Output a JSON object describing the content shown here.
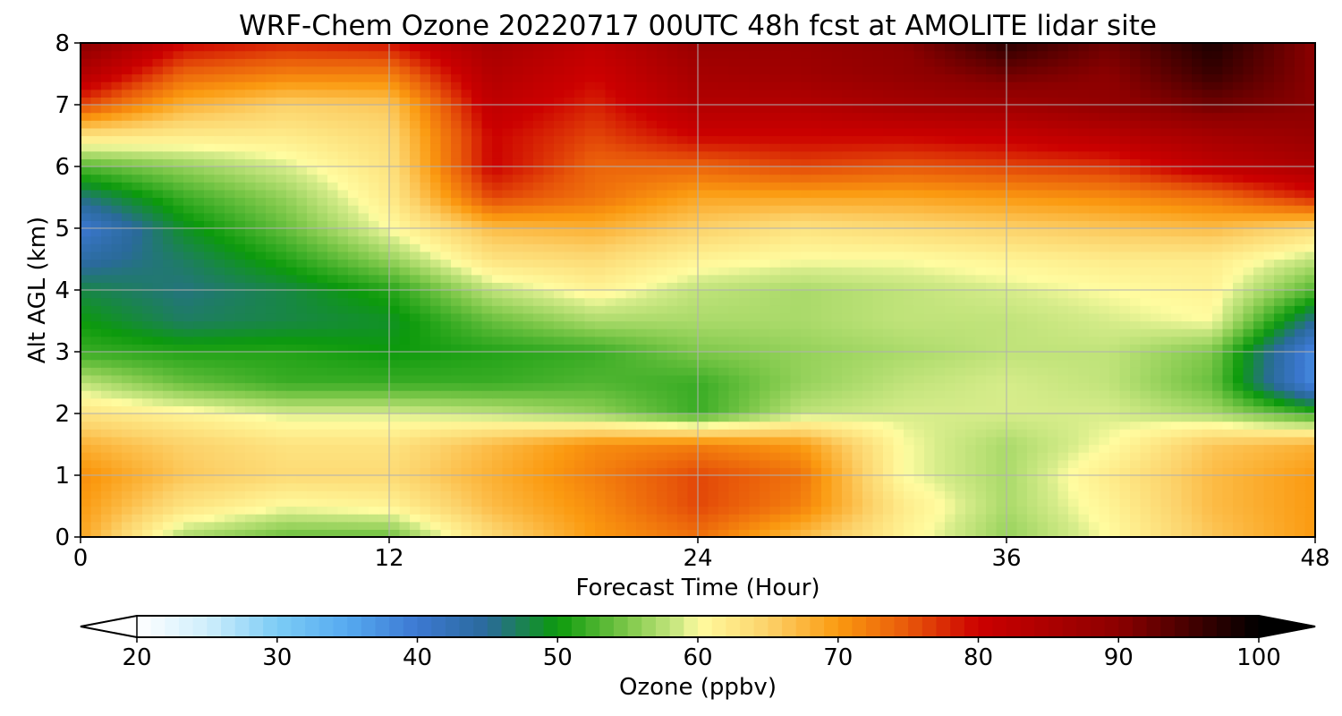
{
  "chart_data": {
    "type": "heatmap",
    "title": "WRF-Chem Ozone  20220717 00UTC 48h fcst at AMOLITE lidar site",
    "xlabel": "Forecast Time (Hour)",
    "ylabel": "Alt AGL (km)",
    "xlim": [
      0,
      48
    ],
    "ylim": [
      0,
      8
    ],
    "xticks": [
      "0",
      "12",
      "24",
      "36",
      "48"
    ],
    "yticks": [
      "0",
      "1",
      "2",
      "3",
      "4",
      "5",
      "6",
      "7",
      "8"
    ],
    "grid": true,
    "colorbar": {
      "label": "Ozone  (ppbv)",
      "min": 20,
      "max": 100,
      "ticks": [
        "20",
        "30",
        "40",
        "50",
        "60",
        "70",
        "80",
        "90",
        "100"
      ],
      "extend": "both",
      "colormap": [
        [
          20,
          "#ffffff"
        ],
        [
          25,
          "#cfeefc"
        ],
        [
          30,
          "#7cccf5"
        ],
        [
          35,
          "#56aaf0"
        ],
        [
          40,
          "#3c78d2"
        ],
        [
          45,
          "#2a6a9a"
        ],
        [
          50,
          "#0c9a0c"
        ],
        [
          55,
          "#7ec84a"
        ],
        [
          59,
          "#d6ec8a"
        ],
        [
          60,
          "#fffca0"
        ],
        [
          65,
          "#fcd26a"
        ],
        [
          70,
          "#fb9a10"
        ],
        [
          75,
          "#e8580a"
        ],
        [
          80,
          "#cc0000"
        ],
        [
          90,
          "#8c0000"
        ],
        [
          100,
          "#000000"
        ]
      ]
    },
    "x": [
      0,
      4,
      8,
      12,
      16,
      20,
      24,
      28,
      32,
      36,
      40,
      44,
      48
    ],
    "y": [
      0,
      0.5,
      1,
      1.5,
      2,
      2.5,
      3,
      3.5,
      4,
      4.5,
      5,
      5.5,
      6,
      6.5,
      7,
      7.5,
      8
    ],
    "z": [
      [
        69,
        57,
        54,
        54,
        64,
        70,
        73,
        67,
        61,
        56,
        60,
        66,
        70
      ],
      [
        70,
        63,
        60,
        61,
        67,
        71,
        76,
        72,
        62,
        57,
        61,
        67,
        70
      ],
      [
        71,
        66,
        64,
        64,
        68,
        72,
        76,
        73,
        60,
        57,
        62,
        67,
        70
      ],
      [
        68,
        65,
        63,
        63,
        67,
        71,
        72,
        70,
        60,
        57,
        60,
        66,
        68
      ],
      [
        63,
        61,
        59,
        59,
        58,
        56,
        52,
        58,
        59,
        59,
        59,
        57,
        52
      ],
      [
        58,
        54,
        52,
        52,
        52,
        53,
        52,
        56,
        58,
        59,
        58,
        54,
        38
      ],
      [
        52,
        51,
        51,
        50,
        51,
        52,
        55,
        56,
        57,
        58,
        58,
        55,
        38
      ],
      [
        50,
        47,
        48,
        49,
        54,
        57,
        57,
        57,
        58,
        58,
        59,
        60,
        45
      ],
      [
        48,
        46,
        48,
        51,
        58,
        61,
        58,
        57,
        58,
        59,
        60,
        61,
        53
      ],
      [
        44,
        47,
        51,
        56,
        63,
        64,
        61,
        60,
        60,
        61,
        62,
        62,
        58
      ],
      [
        40,
        49,
        54,
        60,
        67,
        68,
        65,
        63,
        64,
        65,
        66,
        67,
        64
      ],
      [
        46,
        52,
        56,
        62,
        76,
        73,
        69,
        69,
        69,
        70,
        71,
        73,
        78
      ],
      [
        53,
        56,
        59,
        63,
        80,
        74,
        74,
        76,
        75,
        76,
        77,
        82,
        85
      ],
      [
        63,
        62,
        62,
        64,
        80,
        76,
        80,
        80,
        80,
        81,
        83,
        86,
        88
      ],
      [
        76,
        68,
        65,
        66,
        82,
        78,
        84,
        84,
        86,
        87,
        89,
        92,
        90
      ],
      [
        84,
        74,
        72,
        72,
        84,
        80,
        86,
        87,
        89,
        92,
        90,
        96,
        90
      ],
      [
        90,
        80,
        78,
        79,
        86,
        82,
        88,
        88,
        90,
        97,
        92,
        98,
        90
      ]
    ]
  }
}
